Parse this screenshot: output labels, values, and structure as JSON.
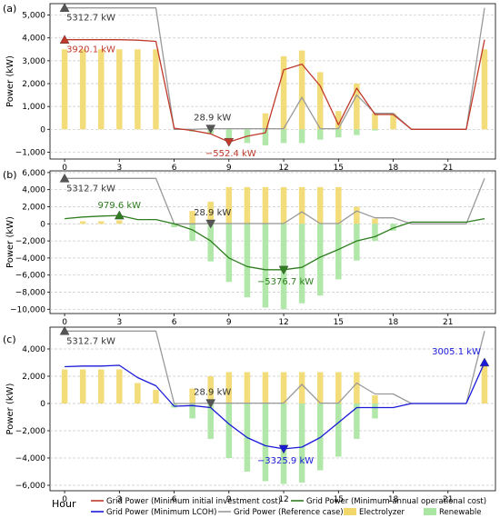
{
  "chart_data": [
    {
      "type": "bar+line",
      "panel_label": "(a)",
      "ylabel": "Power (kW)",
      "ylim": [
        -1300,
        5500
      ],
      "yticks": [
        -1000,
        0,
        1000,
        2000,
        3000,
        4000,
        5000
      ],
      "xticks": [
        0,
        3,
        6,
        9,
        12,
        15,
        18,
        21
      ],
      "x": [
        0,
        1,
        2,
        3,
        4,
        5,
        6,
        7,
        8,
        9,
        10,
        11,
        12,
        13,
        14,
        15,
        16,
        17,
        18,
        19,
        20,
        21,
        22,
        23
      ],
      "electrolyzer": [
        3500,
        3500,
        3500,
        3500,
        3500,
        3500,
        0,
        0,
        0,
        0,
        0,
        700,
        3200,
        3450,
        2500,
        800,
        2000,
        700,
        700,
        0,
        0,
        0,
        0,
        3500
      ],
      "renewable": [
        0,
        0,
        0,
        0,
        0,
        0,
        0,
        -100,
        -200,
        -500,
        -600,
        -700,
        -600,
        -600,
        -450,
        -350,
        -250,
        -50,
        0,
        0,
        0,
        0,
        0,
        0
      ],
      "lines": [
        {
          "name": "Grid Power (Minimum initial investment cost)",
          "color": "#c0392b",
          "values": [
            3920.1,
            3920,
            3920,
            3920,
            3900,
            3850,
            50,
            -50,
            -200,
            -552.4,
            -300,
            -150,
            2600,
            2850,
            1900,
            200,
            1800,
            650,
            650,
            0,
            0,
            0,
            0,
            3920
          ]
        },
        {
          "name": "Grid Power (Reference case)",
          "color": "#999999",
          "values": [
            5312.7,
            5312.7,
            5312.7,
            5312.7,
            5312.7,
            5312.7,
            0,
            0,
            28.9,
            28.9,
            28.9,
            28.9,
            28.9,
            1400,
            28.9,
            28.9,
            1500,
            700,
            700,
            0,
            0,
            0,
            0,
            5312.7
          ]
        }
      ],
      "annotations": [
        {
          "text": "5312.7  kW",
          "color": "#333333",
          "x": 0,
          "y": 5312.7,
          "marker": "up",
          "mcolor": "#555555"
        },
        {
          "text": "3920.1  kW",
          "color": "#c0392b",
          "x": 0,
          "y": 3920.1,
          "marker": "up",
          "mcolor": "#c0392b"
        },
        {
          "text": "28.9  kW",
          "color": "#333333",
          "x": 8,
          "y": 28.9,
          "marker": "down",
          "mcolor": "#555555"
        },
        {
          "text": "−552.4  kW",
          "color": "#c0392b",
          "x": 9,
          "y": -552.4,
          "marker": "down",
          "mcolor": "#c0392b"
        }
      ]
    },
    {
      "type": "bar+line",
      "panel_label": "(b)",
      "ylabel": "Power (kW)",
      "ylim": [
        -10500,
        6200
      ],
      "yticks": [
        -10000,
        -8000,
        -6000,
        -4000,
        -2000,
        0,
        2000,
        4000,
        6000
      ],
      "xticks": [
        0,
        3,
        6,
        9,
        12,
        15,
        18,
        21
      ],
      "x": [
        0,
        1,
        2,
        3,
        4,
        5,
        6,
        7,
        8,
        9,
        10,
        11,
        12,
        13,
        14,
        15,
        16,
        17,
        18,
        19,
        20,
        21,
        22,
        23
      ],
      "electrolyzer": [
        0,
        300,
        300,
        400,
        0,
        0,
        0,
        1500,
        2600,
        4300,
        4300,
        4300,
        4300,
        4300,
        4300,
        4300,
        2000,
        600,
        0,
        0,
        0,
        0,
        0,
        0
      ],
      "renewable": [
        0,
        0,
        0,
        0,
        0,
        0,
        -400,
        -2000,
        -4400,
        -6800,
        -8600,
        -9800,
        -10000,
        -9300,
        -8400,
        -6500,
        -4300,
        -2000,
        -800,
        0,
        0,
        0,
        0,
        0
      ],
      "lines": [
        {
          "name": "Grid Power (Minimum annual operational cost)",
          "color": "#2e7d1f",
          "values": [
            600,
            800,
            900,
            979.6,
            500,
            500,
            0,
            -700,
            -2000,
            -4000,
            -5000,
            -5376.7,
            -5376.7,
            -5100,
            -3900,
            -3000,
            -2000,
            -1500,
            -500,
            200,
            200,
            200,
            200,
            600
          ]
        },
        {
          "name": "Grid Power (Reference case)",
          "color": "#999999",
          "values": [
            5312.7,
            5312.7,
            5312.7,
            5312.7,
            5312.7,
            5312.7,
            0,
            0,
            28.9,
            28.9,
            28.9,
            28.9,
            28.9,
            1400,
            28.9,
            28.9,
            1500,
            700,
            700,
            0,
            0,
            0,
            0,
            5312.7
          ]
        }
      ],
      "annotations": [
        {
          "text": "5312.7  kW",
          "color": "#333333",
          "x": 0,
          "y": 5312.7,
          "marker": "up",
          "mcolor": "#555555"
        },
        {
          "text": "979.6  kW",
          "color": "#2e7d1f",
          "x": 3,
          "y": 979.6,
          "marker": "up",
          "mcolor": "#2e7d1f"
        },
        {
          "text": "28.9  kW",
          "color": "#333333",
          "x": 8,
          "y": 28.9,
          "marker": "down",
          "mcolor": "#555555"
        },
        {
          "text": "−5376.7  kW",
          "color": "#2e7d1f",
          "x": 12,
          "y": -5376.7,
          "marker": "down",
          "mcolor": "#2e7d1f"
        }
      ]
    },
    {
      "type": "bar+line",
      "panel_label": "(c)",
      "ylabel": "Power (kW)",
      "ylim": [
        -6400,
        5600
      ],
      "yticks": [
        -6000,
        -4000,
        -2000,
        0,
        2000,
        4000
      ],
      "xticks": [
        0,
        3,
        6,
        9,
        12,
        15,
        18,
        21
      ],
      "x": [
        0,
        1,
        2,
        3,
        4,
        5,
        6,
        7,
        8,
        9,
        10,
        11,
        12,
        13,
        14,
        15,
        16,
        17,
        18,
        19,
        20,
        21,
        22,
        23
      ],
      "electrolyzer": [
        2500,
        2500,
        2500,
        2500,
        1500,
        1000,
        0,
        1100,
        2000,
        2300,
        2300,
        2300,
        2300,
        2300,
        2300,
        2300,
        2300,
        600,
        0,
        0,
        0,
        0,
        0,
        2800
      ],
      "renewable": [
        0,
        0,
        0,
        0,
        0,
        0,
        -300,
        -1100,
        -2600,
        -4000,
        -5000,
        -5700,
        -5900,
        -5800,
        -4900,
        -3900,
        -2600,
        -1100,
        0,
        0,
        0,
        0,
        0,
        0
      ],
      "lines": [
        {
          "name": "Grid Power (Minimum LCOH)",
          "color": "#1a1ad8",
          "values": [
            2700,
            2750,
            2750,
            2800,
            1900,
            1300,
            -200,
            -150,
            -300,
            -1500,
            -2500,
            -3100,
            -3325.9,
            -3200,
            -2500,
            -1400,
            -300,
            -300,
            -300,
            0,
            0,
            0,
            0,
            3005.1
          ]
        },
        {
          "name": "Grid Power (Reference case)",
          "color": "#999999",
          "values": [
            5312.7,
            5312.7,
            5312.7,
            5312.7,
            5312.7,
            5312.7,
            0,
            0,
            28.9,
            28.9,
            28.9,
            28.9,
            28.9,
            1400,
            28.9,
            28.9,
            1500,
            700,
            700,
            0,
            0,
            0,
            0,
            5312.7
          ]
        }
      ],
      "annotations": [
        {
          "text": "5312.7  kW",
          "color": "#333333",
          "x": 0,
          "y": 5312.7,
          "marker": "up",
          "mcolor": "#555555"
        },
        {
          "text": "28.9  kW",
          "color": "#333333",
          "x": 8,
          "y": 28.9,
          "marker": "down",
          "mcolor": "#555555"
        },
        {
          "text": "−3325.9  kW",
          "color": "#1a1ad8",
          "x": 12,
          "y": -3325.9,
          "marker": "down",
          "mcolor": "#1a1ad8"
        },
        {
          "text": "3005.1  kW",
          "color": "#1a1ad8",
          "x": 23,
          "y": 3005.1,
          "marker": "up",
          "mcolor": "#1a1ad8"
        }
      ]
    }
  ],
  "xaxis_label": "Hour",
  "colors": {
    "electrolyzer": "#f2d86b",
    "renewable": "#a8e6a1",
    "reference": "#999999"
  },
  "legend": [
    {
      "label": "Grid Power (Minimum initial investment cost)",
      "color": "#c0392b",
      "kind": "line"
    },
    {
      "label": "Grid Power (Minimum annual operational cost)",
      "color": "#2e7d1f",
      "kind": "line"
    },
    {
      "label": "Grid Power (Minimum LCOH)",
      "color": "#1a1ad8",
      "kind": "line"
    },
    {
      "label": "Grid Power (Reference case)",
      "color": "#999999",
      "kind": "line"
    },
    {
      "label": "Electrolyzer",
      "color": "#f2d86b",
      "kind": "patch"
    },
    {
      "label": "Renewable",
      "color": "#a8e6a1",
      "kind": "patch"
    }
  ]
}
